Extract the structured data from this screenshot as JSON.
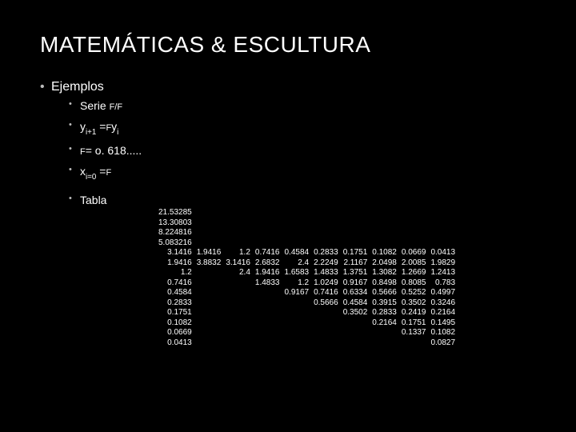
{
  "title": "MATEMÁTICAS & ESCULTURA",
  "bullets": {
    "l1": "Ejemplos",
    "l2a_pre": "Serie ",
    "l2a_small": "F/F",
    "l2b_pre": "y",
    "l2b_sub1": "i+1",
    "l2b_mid": " =",
    "l2b_small": "F",
    "l2b_y2": "y",
    "l2b_sub2": "i",
    "l2c_small": "F",
    "l2c_text": "= o. 618.....",
    "l2d_pre": "x",
    "l2d_sub": "i=0",
    "l2d_mid": " =",
    "l2d_small": "F",
    "l2e": "Tabla"
  },
  "table": [
    [
      "21.53285",
      "",
      "",
      "",
      "",
      "",
      "",
      "",
      "",
      ""
    ],
    [
      "13.30803",
      "",
      "",
      "",
      "",
      "",
      "",
      "",
      "",
      ""
    ],
    [
      "8.224816",
      "",
      "",
      "",
      "",
      "",
      "",
      "",
      "",
      ""
    ],
    [
      "5.083216",
      "",
      "",
      "",
      "",
      "",
      "",
      "",
      "",
      ""
    ],
    [
      "3.1416",
      "1.9416",
      "1.2",
      "0.7416",
      "0.4584",
      "0.2833",
      "0.1751",
      "0.1082",
      "0.0669",
      "0.0413"
    ],
    [
      "1.9416",
      "3.8832",
      "3.1416",
      "2.6832",
      "2.4",
      "2.2249",
      "2.1167",
      "2.0498",
      "2.0085",
      "1.9829"
    ],
    [
      "1.2",
      "",
      "2.4",
      "1.9416",
      "1.6583",
      "1.4833",
      "1.3751",
      "1.3082",
      "1.2669",
      "1.2413"
    ],
    [
      "0.7416",
      "",
      "",
      "1.4833",
      "1.2",
      "1.0249",
      "0.9167",
      "0.8498",
      "0.8085",
      "0.783"
    ],
    [
      "0.4584",
      "",
      "",
      "",
      "0.9167",
      "0.7416",
      "0.6334",
      "0.5666",
      "0.5252",
      "0.4997"
    ],
    [
      "0.2833",
      "",
      "",
      "",
      "",
      "0.5666",
      "0.4584",
      "0.3915",
      "0.3502",
      "0.3246"
    ],
    [
      "0.1751",
      "",
      "",
      "",
      "",
      "",
      "0.3502",
      "0.2833",
      "0.2419",
      "0.2164"
    ],
    [
      "0.1082",
      "",
      "",
      "",
      "",
      "",
      "",
      "0.2164",
      "0.1751",
      "0.1495"
    ],
    [
      "0.0669",
      "",
      "",
      "",
      "",
      "",
      "",
      "",
      "0.1337",
      "0.1082"
    ],
    [
      "0.0413",
      "",
      "",
      "",
      "",
      "",
      "",
      "",
      "",
      "0.0827"
    ]
  ]
}
